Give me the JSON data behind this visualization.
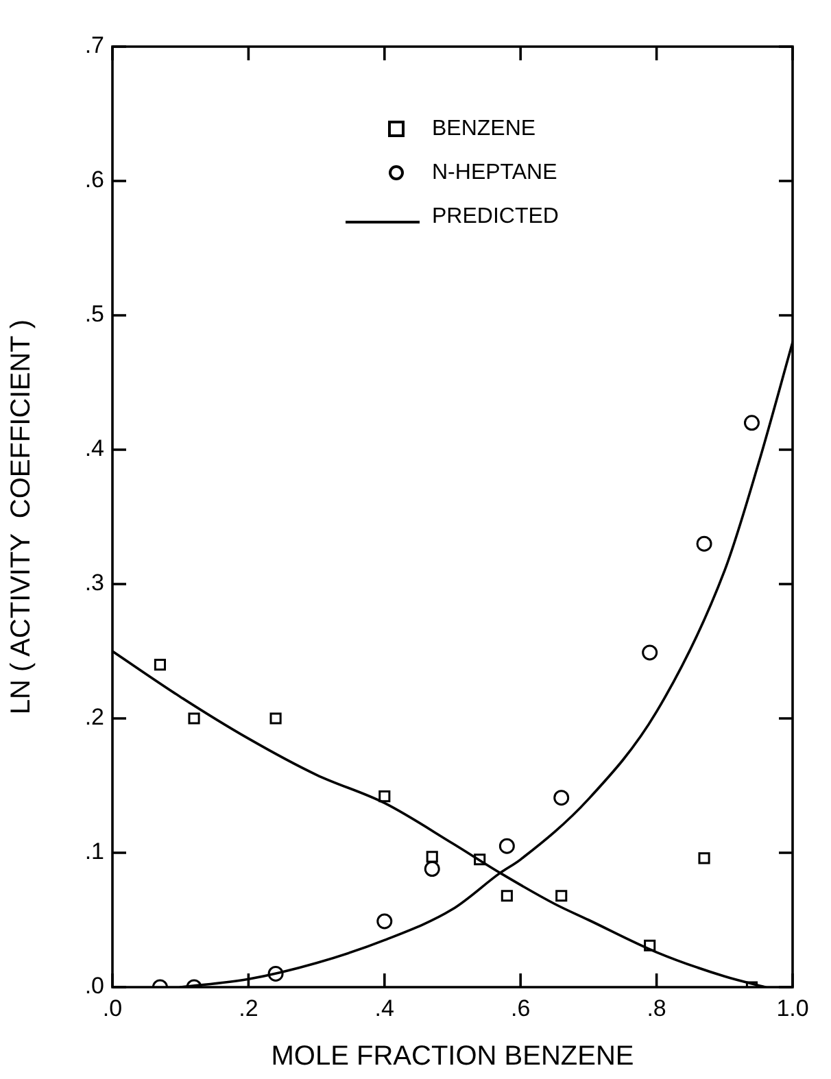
{
  "chart_data": {
    "type": "scatter",
    "xlabel": "MOLE FRACTION BENZENE",
    "ylabel": "LN ( ACTIVITY  COEFFICIENT )",
    "xlim": [
      0,
      1.0
    ],
    "ylim": [
      0,
      0.7
    ],
    "xticks": [
      {
        "value": 0,
        "label": ".0"
      },
      {
        "value": 0.2,
        "label": ".2"
      },
      {
        "value": 0.4,
        "label": ".4"
      },
      {
        "value": 0.6,
        "label": ".6"
      },
      {
        "value": 0.8,
        "label": ".8"
      },
      {
        "value": 1.0,
        "label": "1.0"
      }
    ],
    "yticks": [
      {
        "value": 0,
        "label": ".0"
      },
      {
        "value": 0.1,
        "label": ".1"
      },
      {
        "value": 0.2,
        "label": ".2"
      },
      {
        "value": 0.3,
        "label": ".3"
      },
      {
        "value": 0.4,
        "label": ".4"
      },
      {
        "value": 0.5,
        "label": ".5"
      },
      {
        "value": 0.6,
        "label": ".6"
      },
      {
        "value": 0.7,
        "label": ".7"
      }
    ],
    "legend": "top",
    "series": [
      {
        "name": "BENZENE",
        "marker": "square",
        "color": "#000000",
        "x": [
          0.07,
          0.12,
          0.24,
          0.4,
          0.47,
          0.54,
          0.58,
          0.66,
          0.79,
          0.87,
          0.94
        ],
        "values": [
          0.24,
          0.2,
          0.2,
          0.142,
          0.097,
          0.095,
          0.068,
          0.068,
          0.031,
          0.096,
          0.0
        ]
      },
      {
        "name": "N-HEPTANE",
        "marker": "circle",
        "color": "#000000",
        "x": [
          0.07,
          0.12,
          0.24,
          0.4,
          0.47,
          0.58,
          0.66,
          0.79,
          0.87,
          0.94
        ],
        "values": [
          0.0,
          0.0,
          0.01,
          0.049,
          0.088,
          0.105,
          0.141,
          0.249,
          0.33,
          0.42
        ]
      },
      {
        "name": "PREDICTED",
        "type": "line",
        "marker": "none",
        "color": "#000000",
        "x": [
          0.0,
          0.1,
          0.2,
          0.3,
          0.4,
          0.5,
          0.57,
          0.65,
          0.7,
          0.8,
          0.9,
          0.96
        ],
        "values": [
          0.25,
          0.216,
          0.185,
          0.158,
          0.137,
          0.107,
          0.085,
          0.062,
          0.05,
          0.026,
          0.008,
          0.0
        ]
      },
      {
        "type": "line",
        "marker": "none",
        "color": "#000000",
        "x": [
          0.1,
          0.2,
          0.3,
          0.4,
          0.5,
          0.57,
          0.6,
          0.7,
          0.8,
          0.9,
          0.95,
          1.0
        ],
        "values": [
          0.0,
          0.006,
          0.018,
          0.035,
          0.058,
          0.085,
          0.095,
          0.14,
          0.205,
          0.31,
          0.39,
          0.48
        ]
      }
    ]
  }
}
